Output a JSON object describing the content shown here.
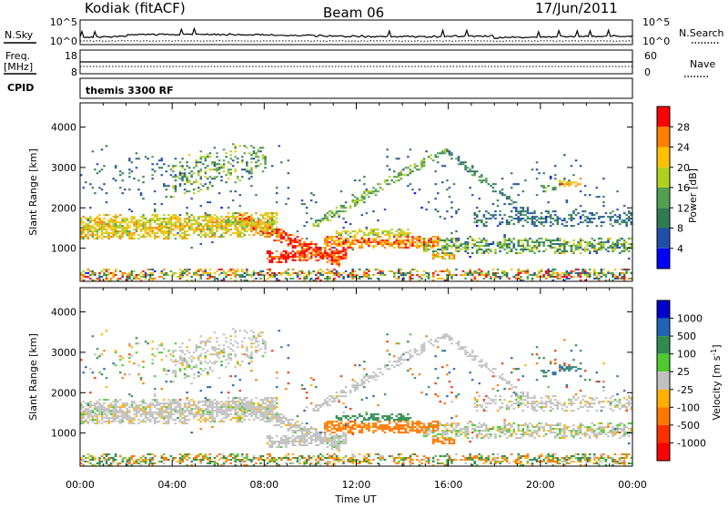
{
  "header": {
    "station": "Kodiak (fitACF)",
    "beam": "Beam 06",
    "date": "17/Jun/2011"
  },
  "nsky_panel": {
    "left_label": "N.Sky",
    "left_ticks": [
      "10^5",
      "10^0"
    ],
    "right_label": "N.Search",
    "right_ticks": [
      "10^5",
      "10^0"
    ]
  },
  "freq_panel": {
    "left_label_line1": "Freq.",
    "left_label_line2": "[MHz]",
    "left_ticks": [
      "18",
      "8"
    ],
    "right_label": "Nave",
    "right_ticks": [
      "60",
      "0"
    ]
  },
  "cpid": {
    "label": "CPID",
    "value": "themis 3300 RF"
  },
  "chart_data": [
    {
      "type": "heatmap",
      "parameter": "power",
      "ylabel": "Slant Range [km]",
      "xlabel": "",
      "yticks": [
        1000,
        2000,
        3000,
        4000
      ],
      "ylim": [
        180,
        4600
      ],
      "xlim_hours": [
        0,
        24
      ],
      "colorbar": {
        "label": "Power [dB]",
        "ticks": [
          "4",
          "8",
          "12",
          "16",
          "20",
          "24",
          "28"
        ],
        "colors": [
          "#0000ff",
          "#1e50a8",
          "#2f7c54",
          "#50a050",
          "#b0d020",
          "#ffc000",
          "#ff8000",
          "#ff0000"
        ],
        "range": [
          0,
          30
        ]
      },
      "features": [
        {
          "t_start": 0,
          "t_end": 8,
          "range_start": 1300,
          "range_end": 1900,
          "level": "16-24 dB"
        },
        {
          "t_start": 7,
          "t_end": 11,
          "range_start": 600,
          "range_end": 1400,
          "level": "24-30 dB"
        },
        {
          "t_start": 11,
          "t_end": 15.5,
          "range_start": 950,
          "range_end": 1300,
          "level": "20-28 dB"
        },
        {
          "t_start": 15,
          "t_end": 24,
          "range_start": 800,
          "range_end": 1400,
          "level": "8-20 dB"
        },
        {
          "t_start": 0,
          "t_end": 24,
          "range_start": 200,
          "range_end": 500,
          "level": "mixed"
        }
      ]
    },
    {
      "type": "heatmap",
      "parameter": "velocity",
      "ylabel": "Slant Range [km]",
      "xlabel": "Time UT",
      "yticks": [
        1000,
        2000,
        3000,
        4000
      ],
      "ylim": [
        180,
        4600
      ],
      "xlim_hours": [
        0,
        24
      ],
      "xticks": [
        "00:00",
        "04:00",
        "08:00",
        "12:00",
        "16:00",
        "20:00",
        "00:00"
      ],
      "colorbar": {
        "label_main": "Velocity [m s",
        "label_sup": "-1",
        "label_end": "]",
        "ticks": [
          "1000",
          "500",
          "100",
          "25",
          "-25",
          "-100",
          "-500",
          "-1000"
        ],
        "colors": [
          "#0000cc",
          "#1e64b4",
          "#2e8c50",
          "#50c830",
          "#c0c0c0",
          "#ffb000",
          "#ff7800",
          "#ff3000",
          "#ff0000"
        ],
        "range": [
          -1200,
          1200
        ]
      },
      "features": [
        {
          "t_start": 0,
          "t_end": 24,
          "range_start": 600,
          "range_end": 2300,
          "level": "-25 to 25 m/s"
        },
        {
          "t_start": 12,
          "t_end": 15.5,
          "range_start": 1150,
          "range_end": 1500,
          "level": "-100 to -500 m/s"
        },
        {
          "t_start": 11,
          "t_end": 14,
          "range_start": 1200,
          "range_end": 1500,
          "level": "100-500 m/s"
        },
        {
          "t_start": 14.5,
          "t_end": 16,
          "range_start": 650,
          "range_end": 900,
          "level": "-100 to -500 m/s"
        }
      ]
    }
  ]
}
